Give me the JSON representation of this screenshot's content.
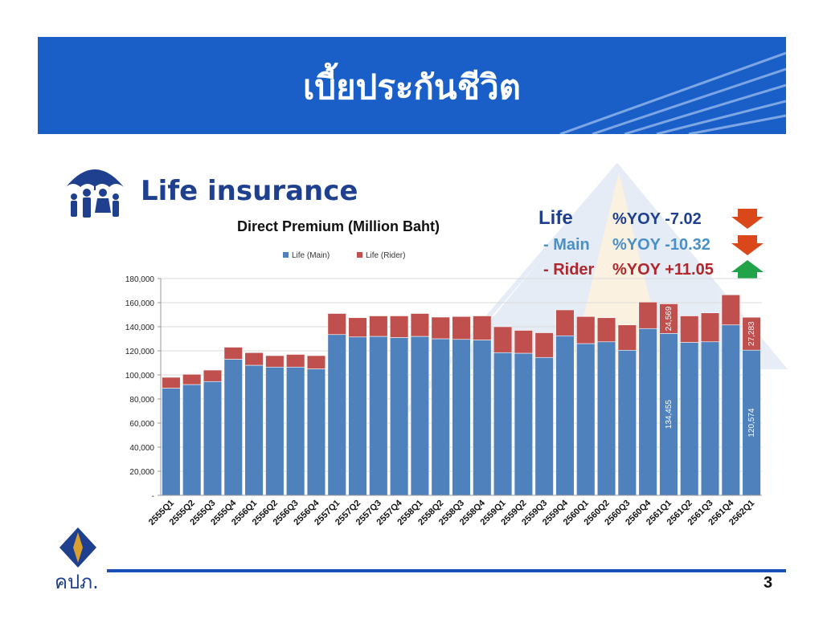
{
  "header": {
    "title": "เบี้ยประกันชีวิต"
  },
  "section": {
    "title": "Life insurance"
  },
  "organization": {
    "logo_text": "คปภ."
  },
  "page_number": "3",
  "yoy": {
    "life": {
      "label": "Life",
      "value": "%YOY -7.02",
      "direction": "down"
    },
    "main": {
      "label": "- Main",
      "value": "%YOY -10.32",
      "direction": "down"
    },
    "rider": {
      "label": "- Rider",
      "value": "%YOY +11.05",
      "direction": "up"
    }
  },
  "colors": {
    "header_bg": "#1a5fc8",
    "main_series": "#4f81bd",
    "rider_series": "#c0504d",
    "arrow_down": "#d9471b",
    "arrow_up": "#21a34a",
    "title_navy": "#1f3f8f",
    "yoy_main_blue": "#4a90c8",
    "yoy_rider_red": "#b0272d"
  },
  "chart_data": {
    "type": "bar",
    "stacked": true,
    "title": "Direct Premium (Million Baht)",
    "categories": [
      "2555Q1",
      "2555Q2",
      "2555Q3",
      "2555Q4",
      "2556Q1",
      "2556Q2",
      "2556Q3",
      "2556Q4",
      "2557Q1",
      "2557Q2",
      "2557Q3",
      "2557Q4",
      "2558Q1",
      "2558Q2",
      "2558Q3",
      "2558Q4",
      "2559Q1",
      "2559Q2",
      "2559Q3",
      "2559Q4",
      "2560Q1",
      "2560Q2",
      "2560Q3",
      "2560Q4",
      "2561Q1",
      "2561Q2",
      "2561Q3",
      "2561Q4",
      "2562Q1"
    ],
    "series": [
      {
        "name": "Life (Main)",
        "values": [
          89000,
          92000,
          94500,
          113000,
          108000,
          106500,
          106500,
          105000,
          133500,
          131500,
          132000,
          131000,
          132000,
          130000,
          129500,
          129000,
          118500,
          118000,
          114500,
          132500,
          126000,
          127500,
          120500,
          138500,
          134455,
          127000,
          127500,
          141500,
          120574
        ]
      },
      {
        "name": "Life (Rider)",
        "values": [
          9000,
          8500,
          9500,
          10000,
          10500,
          9500,
          10500,
          11000,
          17500,
          16000,
          17000,
          18000,
          19000,
          18000,
          19000,
          20000,
          21500,
          19000,
          20500,
          21500,
          22500,
          20000,
          21000,
          22000,
          24569,
          22000,
          24000,
          25000,
          27283
        ]
      }
    ],
    "data_labels": [
      {
        "category": "2561Q1",
        "series": "Life (Main)",
        "text": "134,455"
      },
      {
        "category": "2561Q1",
        "series": "Life (Rider)",
        "text": "24,569"
      },
      {
        "category": "2562Q1",
        "series": "Life (Main)",
        "text": "120,574"
      },
      {
        "category": "2562Q1",
        "series": "Life (Rider)",
        "text": "27,283"
      }
    ],
    "y_ticks": [
      "-",
      "20,000",
      "40,000",
      "60,000",
      "80,000",
      "100,000",
      "120,000",
      "140,000",
      "160,000",
      "180,000"
    ],
    "ylim": [
      0,
      180000
    ],
    "grid": true,
    "legend": "top-center"
  }
}
